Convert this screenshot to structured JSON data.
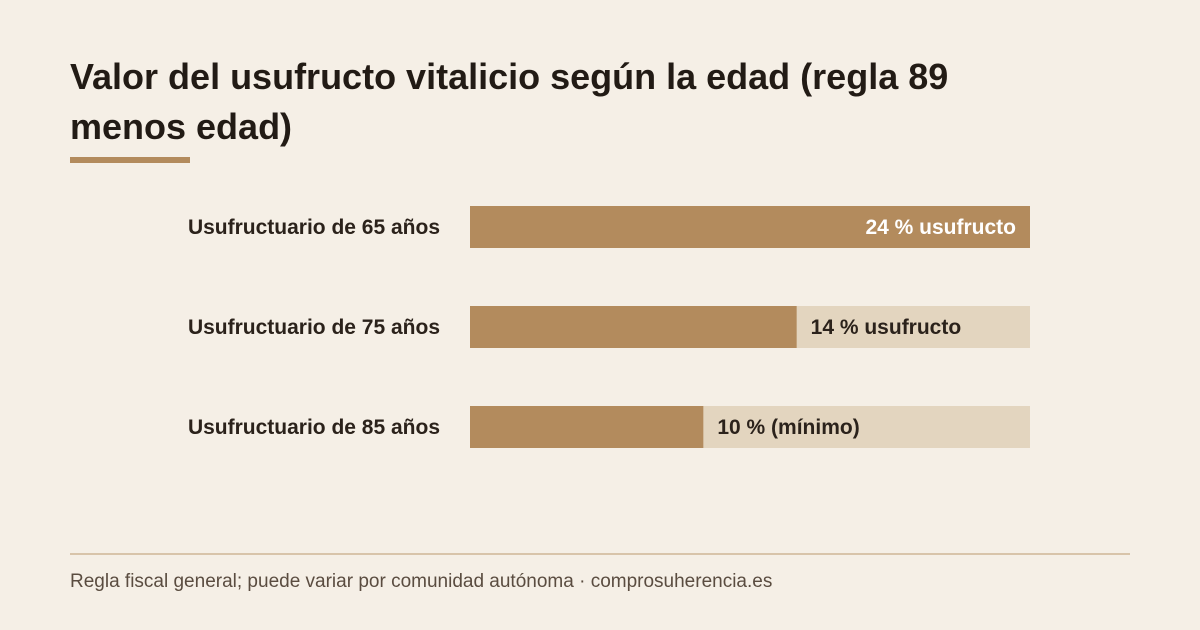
{
  "title": "Valor del usufructo vitalicio según la edad (regla 89 menos edad)",
  "footer": "Regla fiscal general; puede variar por comunidad autónoma · comprosuherencia.es",
  "colors": {
    "background": "#f5efe6",
    "bar_fill": "#b38b5d",
    "bar_track": "#e3d5bf",
    "accent_rule": "#b38b5d",
    "label_on_bar": "#ffffff",
    "label_on_track": "#2b221b"
  },
  "chart_data": {
    "type": "bar",
    "orientation": "horizontal",
    "categories": [
      "Usufructuario de 65 años",
      "Usufructuario de 75 años",
      "Usufructuario de 85 años"
    ],
    "values": [
      24,
      14,
      10
    ],
    "data_labels": [
      "24 % usufructo",
      "14 % usufructo",
      "10 % (mínimo)"
    ],
    "xlim": [
      0,
      24
    ],
    "unit": "%",
    "grid": false
  }
}
